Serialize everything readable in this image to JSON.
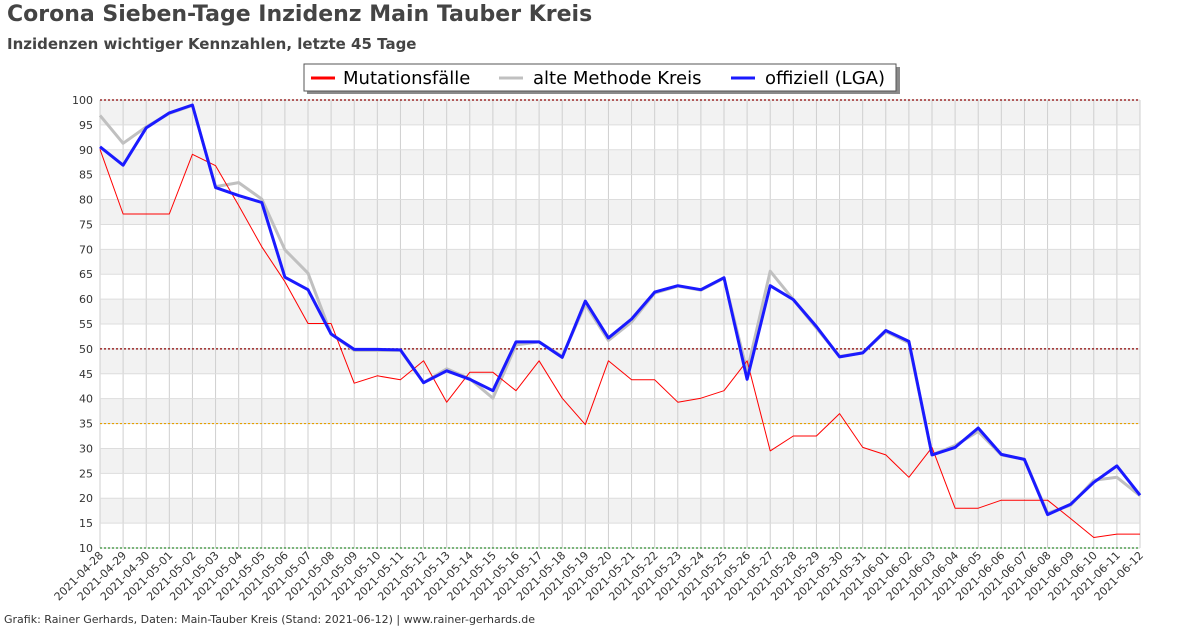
{
  "title": "Corona Sieben-Tage Inzidenz Main Tauber Kreis",
  "subtitle": "Inzidenzen wichtiger Kennzahlen, letzte 45 Tage",
  "footer": "Grafik: Rainer Gerhards, Daten: Main-Tauber Kreis (Stand: 2021-06-12) | www.rainer-gerhards.de",
  "chart_data": {
    "type": "line",
    "title": "Corona Sieben-Tage Inzidenz Main Tauber Kreis",
    "subtitle": "Inzidenzen wichtiger Kennzahlen, letzte 45 Tage",
    "xlabel": "",
    "ylabel": "",
    "ylim": [
      10,
      100
    ],
    "yticks": [
      10,
      15,
      20,
      25,
      30,
      35,
      40,
      45,
      50,
      55,
      60,
      65,
      70,
      75,
      80,
      85,
      90,
      95,
      100
    ],
    "grid": true,
    "legend_position": "top-center",
    "reference_lines": [
      {
        "y": 100,
        "color": "#8b0000"
      },
      {
        "y": 50,
        "color": "#8b0000"
      },
      {
        "y": 35,
        "color": "#e6a000"
      },
      {
        "y": 10,
        "color": "#2e8b2e"
      }
    ],
    "x": [
      "2021-04-28",
      "2021-04-29",
      "2021-04-30",
      "2021-05-01",
      "2021-05-02",
      "2021-05-03",
      "2021-05-04",
      "2021-05-05",
      "2021-05-06",
      "2021-05-07",
      "2021-05-08",
      "2021-05-09",
      "2021-05-10",
      "2021-05-11",
      "2021-05-12",
      "2021-05-13",
      "2021-05-14",
      "2021-05-15",
      "2021-05-16",
      "2021-05-17",
      "2021-05-18",
      "2021-05-19",
      "2021-05-20",
      "2021-05-21",
      "2021-05-22",
      "2021-05-23",
      "2021-05-24",
      "2021-05-25",
      "2021-05-26",
      "2021-05-27",
      "2021-05-28",
      "2021-05-29",
      "2021-05-30",
      "2021-05-31",
      "2021-06-01",
      "2021-06-02",
      "2021-06-03",
      "2021-06-04",
      "2021-06-05",
      "2021-06-06",
      "2021-06-07",
      "2021-06-08",
      "2021-06-09",
      "2021-06-10",
      "2021-06-11",
      "2021-06-12"
    ],
    "series": [
      {
        "name": "Mutationsfälle",
        "color": "#ff0000",
        "width": 1,
        "values": [
          90.1,
          77.1,
          77.1,
          77.1,
          89.1,
          86.8,
          78.8,
          70.5,
          63.5,
          55.1,
          55.1,
          43.1,
          44.6,
          43.8,
          47.6,
          39.3,
          45.3,
          45.3,
          41.6,
          47.6,
          40.1,
          34.8,
          47.6,
          43.8,
          43.8,
          39.3,
          40.1,
          41.6,
          47.6,
          29.5,
          32.5,
          32.5,
          37.0,
          30.2,
          28.7,
          24.2,
          30.2,
          18.0,
          18.0,
          19.6,
          19.6,
          19.6,
          15.9,
          12.1,
          12.8,
          12.8
        ]
      },
      {
        "name": "alte Methode Kreis",
        "color": "#c0c0c0",
        "width": 3,
        "values": [
          96.9,
          91.3,
          94.6,
          97.3,
          98.9,
          82.6,
          83.4,
          80.1,
          69.9,
          65.2,
          53.0,
          49.7,
          49.7,
          49.7,
          43.2,
          46.0,
          44.0,
          40.1,
          50.8,
          51.4,
          48.5,
          59.0,
          51.7,
          55.4,
          61.2,
          62.6,
          61.8,
          64.2,
          45.5,
          65.6,
          59.9,
          54.2,
          48.5,
          49.2,
          53.5,
          51.2,
          28.7,
          30.6,
          33.4,
          28.7,
          27.8,
          17.0,
          18.6,
          23.6,
          24.2,
          20.5
        ]
      },
      {
        "name": "offiziell (LGA)",
        "color": "#1a1aff",
        "width": 3,
        "values": [
          90.6,
          86.9,
          94.4,
          97.4,
          99.0,
          82.4,
          80.8,
          79.4,
          64.4,
          61.9,
          53.0,
          49.9,
          49.9,
          49.8,
          43.2,
          45.6,
          43.9,
          41.6,
          51.4,
          51.4,
          48.3,
          59.6,
          52.2,
          56.0,
          61.4,
          62.7,
          61.9,
          64.3,
          43.9,
          62.7,
          59.9,
          54.5,
          48.4,
          49.2,
          53.7,
          51.5,
          28.7,
          30.2,
          34.1,
          28.8,
          27.8,
          16.7,
          18.8,
          23.2,
          26.5,
          20.6
        ]
      }
    ]
  }
}
